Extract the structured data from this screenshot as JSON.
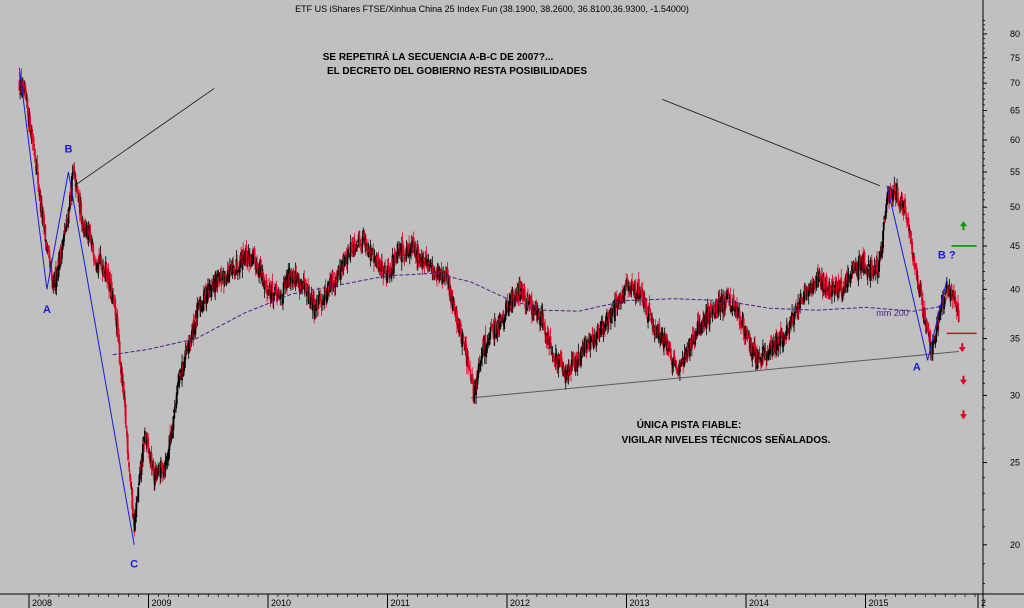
{
  "chart_data": {
    "type": "candlestick",
    "title": "ETF US iShares FTSE/Xinhua China 25 Index Fun (38.1900, 38.2600, 36.8100,36.9300, -1.54000)",
    "y_scale": "log",
    "ylim": [
      17.5,
      84
    ],
    "y_ticks": [
      20,
      25,
      30,
      35,
      40,
      45,
      50,
      55,
      60,
      65,
      70,
      75,
      80
    ],
    "x_ticks": [
      "2008",
      "2009",
      "2010",
      "2011",
      "2012",
      "2013",
      "2014",
      "2015",
      "2"
    ],
    "price_anchors": [
      {
        "date": "2007.92",
        "value": 70
      },
      {
        "date": "2007.97",
        "value": 67
      },
      {
        "date": "2008.05",
        "value": 58
      },
      {
        "date": "2008.10",
        "value": 50
      },
      {
        "date": "2008.20",
        "value": 40
      },
      {
        "date": "2008.32",
        "value": 48
      },
      {
        "date": "2008.37",
        "value": 55
      },
      {
        "date": "2008.45",
        "value": 48
      },
      {
        "date": "2008.55",
        "value": 44
      },
      {
        "date": "2008.65",
        "value": 42
      },
      {
        "date": "2008.73",
        "value": 37
      },
      {
        "date": "2008.80",
        "value": 29
      },
      {
        "date": "2008.88",
        "value": 21
      },
      {
        "date": "2008.97",
        "value": 27
      },
      {
        "date": "2009.05",
        "value": 24
      },
      {
        "date": "2009.15",
        "value": 25
      },
      {
        "date": "2009.25",
        "value": 31
      },
      {
        "date": "2009.33",
        "value": 34
      },
      {
        "date": "2009.42",
        "value": 38
      },
      {
        "date": "2009.50",
        "value": 40
      },
      {
        "date": "2009.60",
        "value": 41
      },
      {
        "date": "2009.70",
        "value": 42
      },
      {
        "date": "2009.80",
        "value": 44
      },
      {
        "date": "2009.90",
        "value": 43
      },
      {
        "date": "2010.00",
        "value": 40
      },
      {
        "date": "2010.10",
        "value": 39
      },
      {
        "date": "2010.20",
        "value": 42
      },
      {
        "date": "2010.30",
        "value": 40
      },
      {
        "date": "2010.40",
        "value": 38
      },
      {
        "date": "2010.50",
        "value": 40
      },
      {
        "date": "2010.60",
        "value": 42
      },
      {
        "date": "2010.70",
        "value": 45
      },
      {
        "date": "2010.80",
        "value": 46
      },
      {
        "date": "2010.90",
        "value": 43
      },
      {
        "date": "2011.00",
        "value": 42
      },
      {
        "date": "2011.10",
        "value": 44
      },
      {
        "date": "2011.20",
        "value": 45
      },
      {
        "date": "2011.30",
        "value": 43
      },
      {
        "date": "2011.40",
        "value": 42
      },
      {
        "date": "2011.50",
        "value": 41
      },
      {
        "date": "2011.58",
        "value": 37
      },
      {
        "date": "2011.65",
        "value": 34
      },
      {
        "date": "2011.72",
        "value": 30
      },
      {
        "date": "2011.80",
        "value": 34
      },
      {
        "date": "2011.90",
        "value": 36
      },
      {
        "date": "2012.00",
        "value": 38
      },
      {
        "date": "2012.10",
        "value": 40
      },
      {
        "date": "2012.20",
        "value": 38
      },
      {
        "date": "2012.30",
        "value": 37
      },
      {
        "date": "2012.40",
        "value": 33
      },
      {
        "date": "2012.50",
        "value": 32
      },
      {
        "date": "2012.60",
        "value": 33
      },
      {
        "date": "2012.70",
        "value": 35
      },
      {
        "date": "2012.80",
        "value": 36
      },
      {
        "date": "2012.90",
        "value": 38
      },
      {
        "date": "2013.00",
        "value": 40
      },
      {
        "date": "2013.10",
        "value": 40
      },
      {
        "date": "2013.20",
        "value": 37
      },
      {
        "date": "2013.30",
        "value": 35
      },
      {
        "date": "2013.40",
        "value": 33
      },
      {
        "date": "2013.45",
        "value": 32
      },
      {
        "date": "2013.55",
        "value": 35
      },
      {
        "date": "2013.65",
        "value": 37
      },
      {
        "date": "2013.75",
        "value": 38
      },
      {
        "date": "2013.85",
        "value": 39
      },
      {
        "date": "2013.95",
        "value": 37
      },
      {
        "date": "2014.05",
        "value": 34
      },
      {
        "date": "2014.10",
        "value": 33
      },
      {
        "date": "2014.20",
        "value": 34
      },
      {
        "date": "2014.30",
        "value": 35
      },
      {
        "date": "2014.40",
        "value": 37
      },
      {
        "date": "2014.50",
        "value": 40
      },
      {
        "date": "2014.60",
        "value": 41
      },
      {
        "date": "2014.70",
        "value": 40
      },
      {
        "date": "2014.80",
        "value": 40
      },
      {
        "date": "2014.90",
        "value": 42
      },
      {
        "date": "2014.98",
        "value": 43
      },
      {
        "date": "2015.05",
        "value": 42
      },
      {
        "date": "2015.12",
        "value": 43
      },
      {
        "date": "2015.18",
        "value": 51
      },
      {
        "date": "2015.25",
        "value": 52
      },
      {
        "date": "2015.32",
        "value": 50
      },
      {
        "date": "2015.40",
        "value": 44
      },
      {
        "date": "2015.48",
        "value": 38
      },
      {
        "date": "2015.55",
        "value": 34
      },
      {
        "date": "2015.62",
        "value": 37
      },
      {
        "date": "2015.68",
        "value": 40
      },
      {
        "date": "2015.74",
        "value": 39
      },
      {
        "date": "2015.78",
        "value": 37
      }
    ],
    "moving_average": {
      "label": "mm 200",
      "points": [
        {
          "date": "2008.70",
          "value": 33.5
        },
        {
          "date": "2009.00",
          "value": 34.0
        },
        {
          "date": "2009.40",
          "value": 35.0
        },
        {
          "date": "2009.80",
          "value": 37.5
        },
        {
          "date": "2010.20",
          "value": 39.5
        },
        {
          "date": "2010.60",
          "value": 40.5
        },
        {
          "date": "2011.00",
          "value": 41.5
        },
        {
          "date": "2011.40",
          "value": 41.8
        },
        {
          "date": "2011.70",
          "value": 40.8
        },
        {
          "date": "2012.00",
          "value": 39.0
        },
        {
          "date": "2012.30",
          "value": 37.8
        },
        {
          "date": "2012.60",
          "value": 37.7
        },
        {
          "date": "2013.00",
          "value": 38.8
        },
        {
          "date": "2013.40",
          "value": 39.0
        },
        {
          "date": "2013.80",
          "value": 38.8
        },
        {
          "date": "2014.20",
          "value": 38.0
        },
        {
          "date": "2014.60",
          "value": 37.8
        },
        {
          "date": "2015.00",
          "value": 38.1
        },
        {
          "date": "2015.40",
          "value": 37.7
        },
        {
          "date": "2015.68",
          "value": 38.3
        }
      ]
    },
    "waves": [
      {
        "points": [
          {
            "date": "2007.92",
            "value": 73
          },
          {
            "date": "2008.15",
            "value": 40
          },
          {
            "date": "2008.33",
            "value": 55
          },
          {
            "date": "2008.88",
            "value": 20
          }
        ]
      },
      {
        "points": [
          {
            "date": "2015.18",
            "value": 53
          },
          {
            "date": "2015.52",
            "value": 33
          },
          {
            "date": "2015.68",
            "value": 41
          }
        ]
      }
    ],
    "wave_labels": [
      {
        "text": "A",
        "date": "2008.15",
        "value": 37.5
      },
      {
        "text": "B",
        "date": "2008.33",
        "value": 58
      },
      {
        "text": "C",
        "date": "2008.88",
        "value": 18.8
      },
      {
        "text": "A",
        "date": "2015.43",
        "value": 32.1
      },
      {
        "text": "B ?",
        "date": "2015.68",
        "value": 43.5
      }
    ],
    "support_line": [
      {
        "date": "2011.70",
        "value": 29.8
      },
      {
        "date": "2015.78",
        "value": 33.8
      }
    ],
    "callout_lines": [
      [
        {
          "date": "2008.38",
          "value": 53
        },
        {
          "date": "2009.55",
          "value": 69
        }
      ],
      [
        {
          "date": "2013.30",
          "value": 67
        },
        {
          "date": "2015.12",
          "value": 53
        }
      ]
    ],
    "levels": [
      {
        "value": 45,
        "color": "#009900",
        "from": "2015.72",
        "to": "2015.93"
      },
      {
        "value": 35.5,
        "color": "#dd0022",
        "from": "2015.68",
        "to": "2015.93"
      }
    ],
    "markers": [
      {
        "direction": "up",
        "color": "#009900",
        "date": "2015.82",
        "value": 47.5
      },
      {
        "direction": "down",
        "color": "#dd0022",
        "date": "2015.81",
        "value": 34.2
      },
      {
        "direction": "down",
        "color": "#dd0022",
        "date": "2015.82",
        "value": 31.3
      },
      {
        "direction": "down",
        "color": "#dd0022",
        "date": "2015.82",
        "value": 28.5
      }
    ],
    "annotations": {
      "top_line1": "SE REPETIRÁ LA SECUENCIA A-B-C DE 2007?...",
      "top_line2": "EL DECRETO DEL GOBIERNO RESTA POSIBILIDADES",
      "bottom_line1": "ÚNICA PISTA FIABLE:",
      "bottom_line2": "VIGILAR NIVELES TÉCNICOS SEÑALADOS."
    },
    "colors": {
      "background": "#c0c0c0",
      "up": "#000000",
      "down": "#dd0022",
      "wave": "#1a1ad6",
      "ma": "#4b1f8a"
    }
  }
}
